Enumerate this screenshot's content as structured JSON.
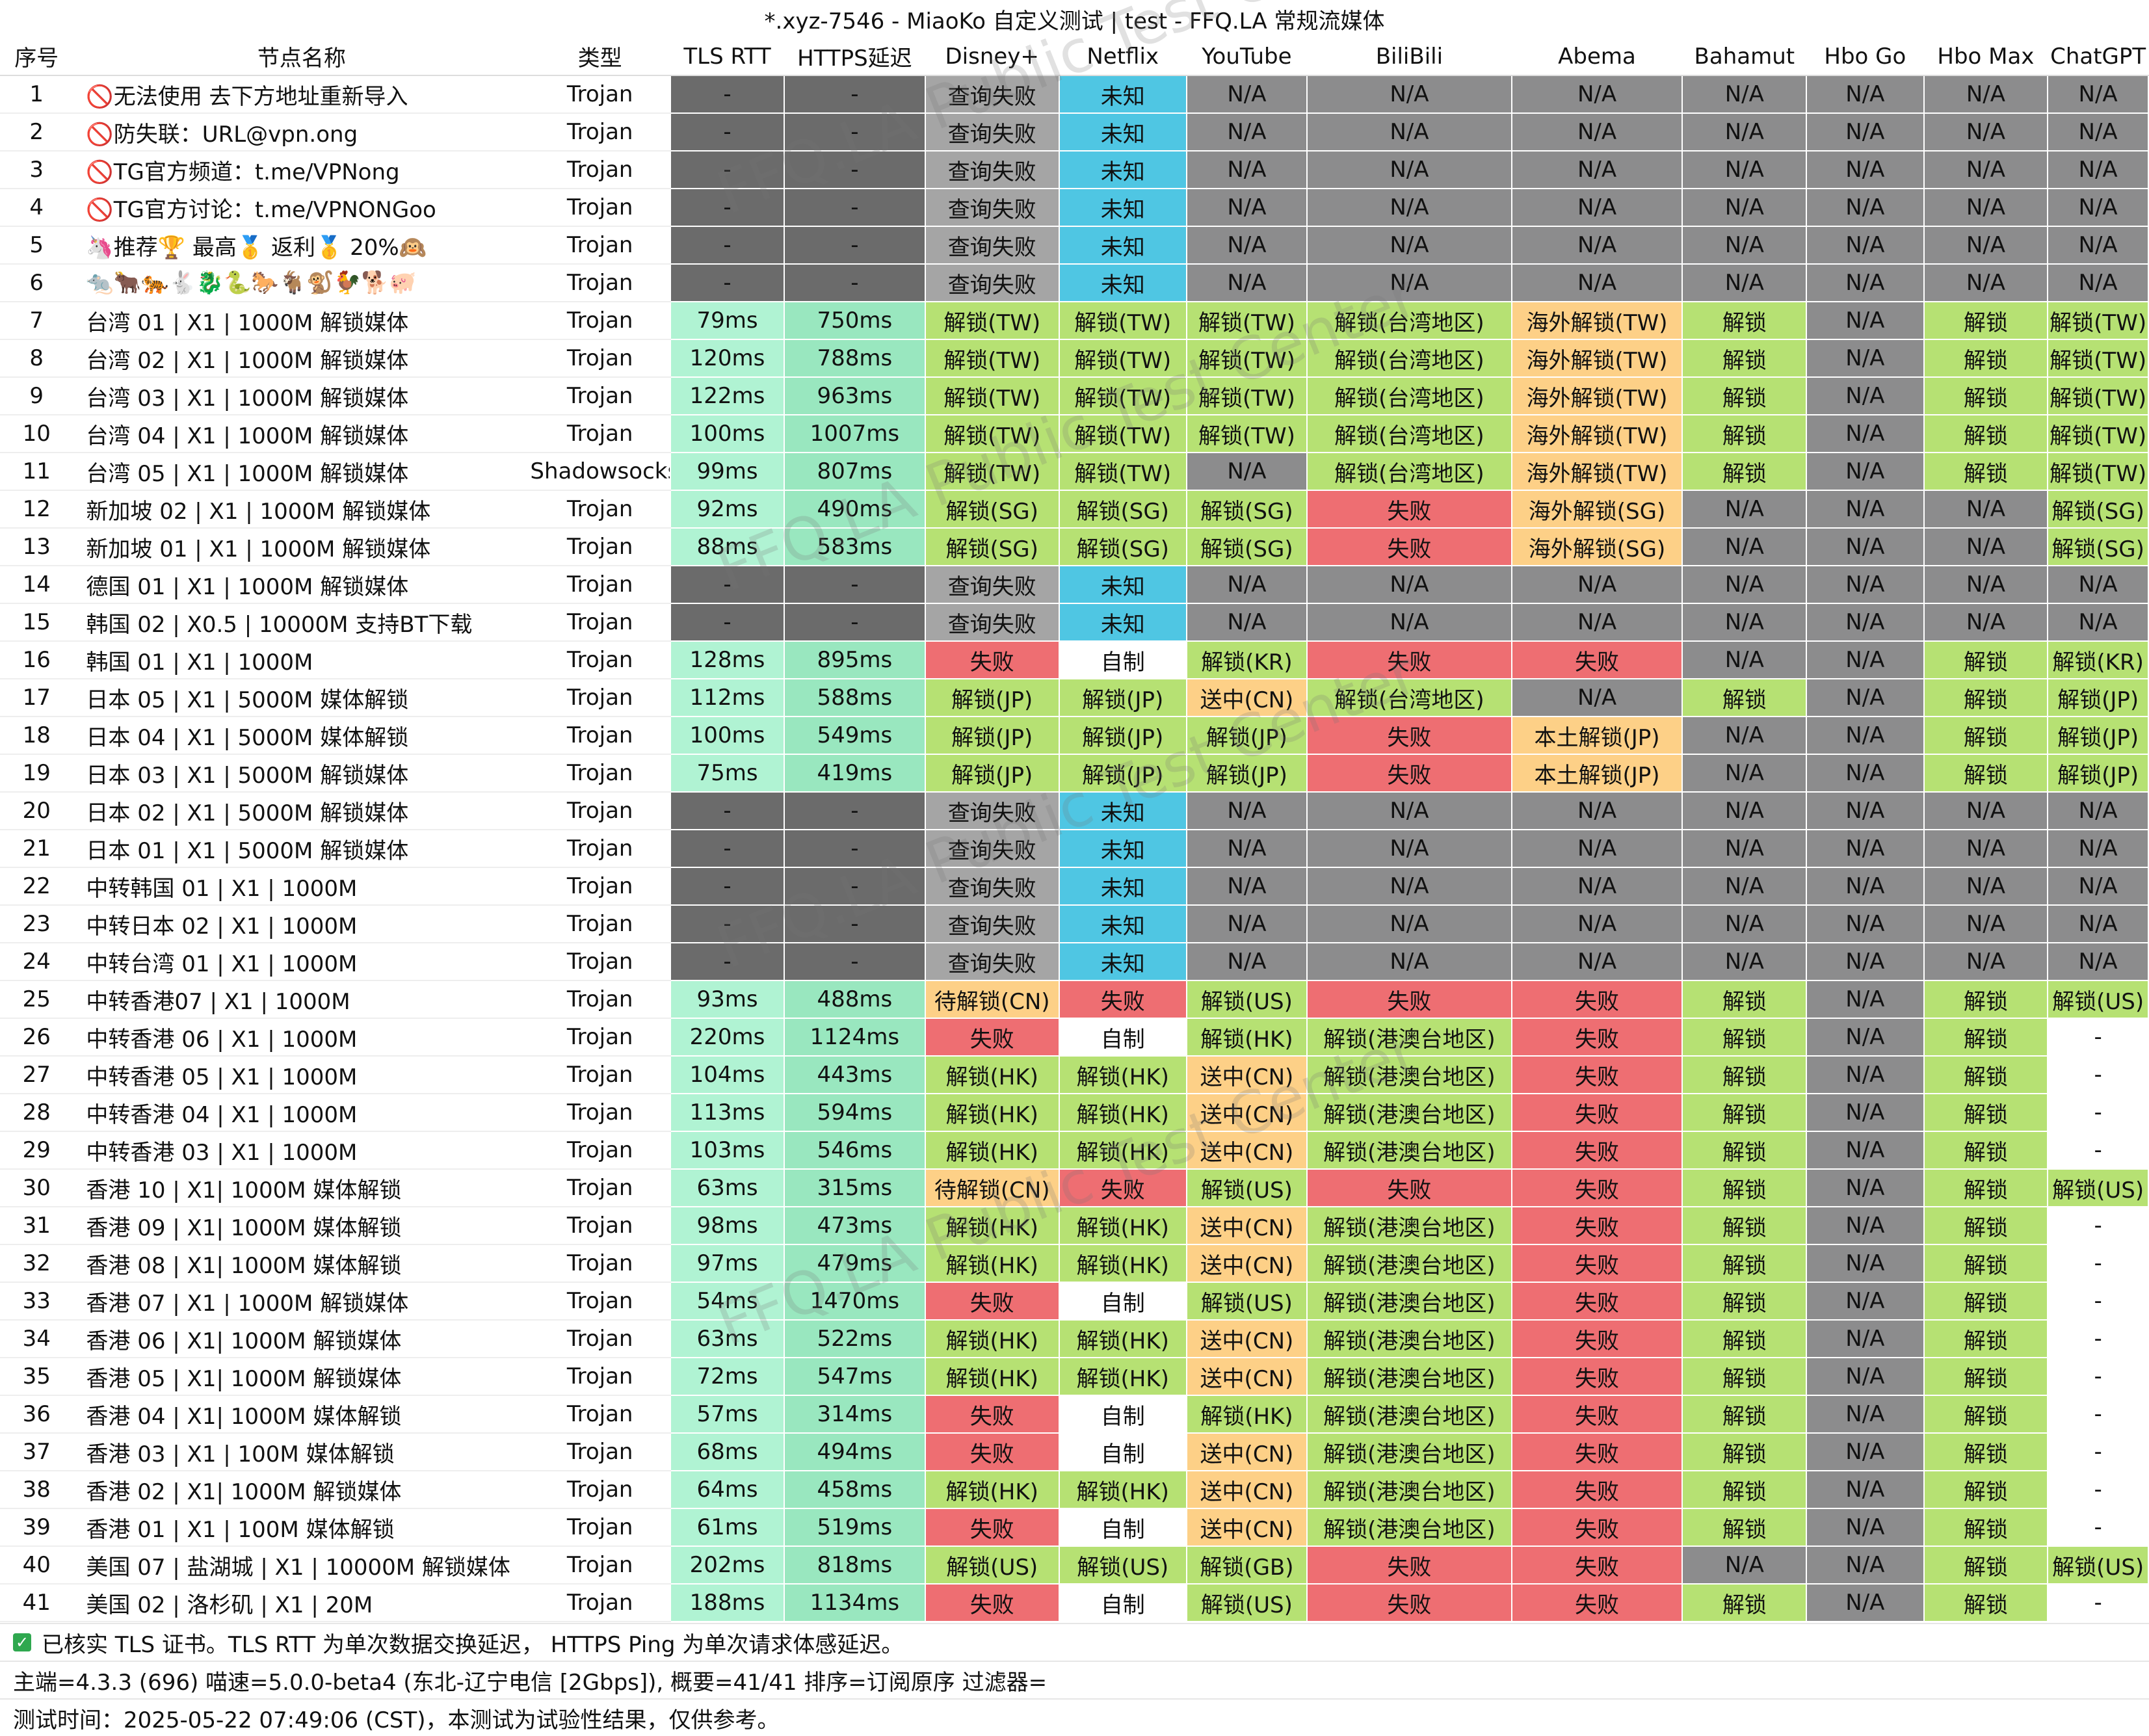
{
  "title": "*.xyz-7546 - MiaoKo 自定义测试 | test - FFQ.LA 常规流媒体",
  "columns": [
    "序号",
    "节点名称",
    "类型",
    "TLS RTT",
    "HTTPS延迟",
    "Disney+",
    "Netflix",
    "YouTube",
    "BiliBili",
    "Abema",
    "Bahamut",
    "Hbo Go",
    "Hbo Max",
    "ChatGPT"
  ],
  "colors": {
    "dark": "#6b6b6b",
    "gray": "#8c8c8d",
    "fail_query": "#a5a5a5",
    "unknown": "#4fc6e3",
    "unlock": "#b6e173",
    "fail": "#ee6e72",
    "oversea": "#fdd087",
    "pending": "#fdd087",
    "rtt": "#b0f3d3",
    "https": "#99e7bf",
    "self": "#ffffff"
  },
  "rows": [
    [
      "1",
      "🚫无法使用 去下方地址重新导入",
      "Trojan",
      "-",
      "-",
      "查询失败",
      "未知",
      "N/A",
      "N/A",
      "N/A",
      "N/A",
      "N/A",
      "N/A",
      "N/A"
    ],
    [
      "2",
      "🚫防失联：URL@vpn.ong",
      "Trojan",
      "-",
      "-",
      "查询失败",
      "未知",
      "N/A",
      "N/A",
      "N/A",
      "N/A",
      "N/A",
      "N/A",
      "N/A"
    ],
    [
      "3",
      "🚫TG官方频道：t.me/VPNong",
      "Trojan",
      "-",
      "-",
      "查询失败",
      "未知",
      "N/A",
      "N/A",
      "N/A",
      "N/A",
      "N/A",
      "N/A",
      "N/A"
    ],
    [
      "4",
      "🚫TG官方讨论：t.me/VPNONGoo",
      "Trojan",
      "-",
      "-",
      "查询失败",
      "未知",
      "N/A",
      "N/A",
      "N/A",
      "N/A",
      "N/A",
      "N/A",
      "N/A"
    ],
    [
      "5",
      "🦄推荐🏆 最高🥇 返利🥇 20%🙉",
      "Trojan",
      "-",
      "-",
      "查询失败",
      "未知",
      "N/A",
      "N/A",
      "N/A",
      "N/A",
      "N/A",
      "N/A",
      "N/A"
    ],
    [
      "6",
      "🐀🐂🐅🐇🐉🐍🐎🐐🐒🐓🐕🐖",
      "Trojan",
      "-",
      "-",
      "查询失败",
      "未知",
      "N/A",
      "N/A",
      "N/A",
      "N/A",
      "N/A",
      "N/A",
      "N/A"
    ],
    [
      "7",
      "台湾 01 | X1 | 1000M 解锁媒体",
      "Trojan",
      "79ms",
      "750ms",
      "解锁(TW)",
      "解锁(TW)",
      "解锁(TW)",
      "解锁(台湾地区)",
      "海外解锁(TW)",
      "解锁",
      "N/A",
      "解锁",
      "解锁(TW)"
    ],
    [
      "8",
      "台湾 02 | X1 | 1000M 解锁媒体",
      "Trojan",
      "120ms",
      "788ms",
      "解锁(TW)",
      "解锁(TW)",
      "解锁(TW)",
      "解锁(台湾地区)",
      "海外解锁(TW)",
      "解锁",
      "N/A",
      "解锁",
      "解锁(TW)"
    ],
    [
      "9",
      "台湾 03 | X1 | 1000M 解锁媒体",
      "Trojan",
      "122ms",
      "963ms",
      "解锁(TW)",
      "解锁(TW)",
      "解锁(TW)",
      "解锁(台湾地区)",
      "海外解锁(TW)",
      "解锁",
      "N/A",
      "解锁",
      "解锁(TW)"
    ],
    [
      "10",
      "台湾 04 | X1 | 1000M 解锁媒体",
      "Trojan",
      "100ms",
      "1007ms",
      "解锁(TW)",
      "解锁(TW)",
      "解锁(TW)",
      "解锁(台湾地区)",
      "海外解锁(TW)",
      "解锁",
      "N/A",
      "解锁",
      "解锁(TW)"
    ],
    [
      "11",
      "台湾 05 | X1 | 1000M 解锁媒体",
      "Shadowsocks",
      "99ms",
      "807ms",
      "解锁(TW)",
      "解锁(TW)",
      "N/A",
      "解锁(台湾地区)",
      "海外解锁(TW)",
      "解锁",
      "N/A",
      "解锁",
      "解锁(TW)"
    ],
    [
      "12",
      "新加坡 02 | X1 | 1000M 解锁媒体",
      "Trojan",
      "92ms",
      "490ms",
      "解锁(SG)",
      "解锁(SG)",
      "解锁(SG)",
      "失败",
      "海外解锁(SG)",
      "N/A",
      "N/A",
      "N/A",
      "解锁(SG)"
    ],
    [
      "13",
      "新加坡 01 | X1 | 1000M 解锁媒体",
      "Trojan",
      "88ms",
      "583ms",
      "解锁(SG)",
      "解锁(SG)",
      "解锁(SG)",
      "失败",
      "海外解锁(SG)",
      "N/A",
      "N/A",
      "N/A",
      "解锁(SG)"
    ],
    [
      "14",
      "德国 01 | X1 | 1000M 解锁媒体",
      "Trojan",
      "-",
      "-",
      "查询失败",
      "未知",
      "N/A",
      "N/A",
      "N/A",
      "N/A",
      "N/A",
      "N/A",
      "N/A"
    ],
    [
      "15",
      "韩国 02 | X0.5 | 10000M 支持BT下载",
      "Trojan",
      "-",
      "-",
      "查询失败",
      "未知",
      "N/A",
      "N/A",
      "N/A",
      "N/A",
      "N/A",
      "N/A",
      "N/A"
    ],
    [
      "16",
      "韩国 01 | X1 | 1000M",
      "Trojan",
      "128ms",
      "895ms",
      "失败",
      "自制",
      "解锁(KR)",
      "失败",
      "失败",
      "N/A",
      "N/A",
      "解锁",
      "解锁(KR)"
    ],
    [
      "17",
      "日本 05 | X1 | 5000M 媒体解锁",
      "Trojan",
      "112ms",
      "588ms",
      "解锁(JP)",
      "解锁(JP)",
      "送中(CN)",
      "解锁(台湾地区)",
      "N/A",
      "解锁",
      "N/A",
      "解锁",
      "解锁(JP)"
    ],
    [
      "18",
      "日本 04 | X1 | 5000M 媒体解锁",
      "Trojan",
      "100ms",
      "549ms",
      "解锁(JP)",
      "解锁(JP)",
      "解锁(JP)",
      "失败",
      "本土解锁(JP)",
      "N/A",
      "N/A",
      "解锁",
      "解锁(JP)"
    ],
    [
      "19",
      "日本 03 | X1 | 5000M 解锁媒体",
      "Trojan",
      "75ms",
      "419ms",
      "解锁(JP)",
      "解锁(JP)",
      "解锁(JP)",
      "失败",
      "本土解锁(JP)",
      "N/A",
      "N/A",
      "解锁",
      "解锁(JP)"
    ],
    [
      "20",
      "日本 02 | X1 | 5000M 解锁媒体",
      "Trojan",
      "-",
      "-",
      "查询失败",
      "未知",
      "N/A",
      "N/A",
      "N/A",
      "N/A",
      "N/A",
      "N/A",
      "N/A"
    ],
    [
      "21",
      "日本 01 | X1 | 5000M 解锁媒体",
      "Trojan",
      "-",
      "-",
      "查询失败",
      "未知",
      "N/A",
      "N/A",
      "N/A",
      "N/A",
      "N/A",
      "N/A",
      "N/A"
    ],
    [
      "22",
      "中转韩国 01 | X1 | 1000M",
      "Trojan",
      "-",
      "-",
      "查询失败",
      "未知",
      "N/A",
      "N/A",
      "N/A",
      "N/A",
      "N/A",
      "N/A",
      "N/A"
    ],
    [
      "23",
      "中转日本 02 | X1 | 1000M",
      "Trojan",
      "-",
      "-",
      "查询失败",
      "未知",
      "N/A",
      "N/A",
      "N/A",
      "N/A",
      "N/A",
      "N/A",
      "N/A"
    ],
    [
      "24",
      "中转台湾 01 | X1 | 1000M",
      "Trojan",
      "-",
      "-",
      "查询失败",
      "未知",
      "N/A",
      "N/A",
      "N/A",
      "N/A",
      "N/A",
      "N/A",
      "N/A"
    ],
    [
      "25",
      "中转香港07 | X1 | 1000M",
      "Trojan",
      "93ms",
      "488ms",
      "待解锁(CN)",
      "失败",
      "解锁(US)",
      "失败",
      "失败",
      "解锁",
      "N/A",
      "解锁",
      "解锁(US)"
    ],
    [
      "26",
      "中转香港 06 | X1 | 1000M",
      "Trojan",
      "220ms",
      "1124ms",
      "失败",
      "自制",
      "解锁(HK)",
      "解锁(港澳台地区)",
      "失败",
      "解锁",
      "N/A",
      "解锁",
      "-"
    ],
    [
      "27",
      "中转香港 05 | X1 | 1000M",
      "Trojan",
      "104ms",
      "443ms",
      "解锁(HK)",
      "解锁(HK)",
      "送中(CN)",
      "解锁(港澳台地区)",
      "失败",
      "解锁",
      "N/A",
      "解锁",
      "-"
    ],
    [
      "28",
      "中转香港 04 | X1 | 1000M",
      "Trojan",
      "113ms",
      "594ms",
      "解锁(HK)",
      "解锁(HK)",
      "送中(CN)",
      "解锁(港澳台地区)",
      "失败",
      "解锁",
      "N/A",
      "解锁",
      "-"
    ],
    [
      "29",
      "中转香港 03 | X1 | 1000M",
      "Trojan",
      "103ms",
      "546ms",
      "解锁(HK)",
      "解锁(HK)",
      "送中(CN)",
      "解锁(港澳台地区)",
      "失败",
      "解锁",
      "N/A",
      "解锁",
      "-"
    ],
    [
      "30",
      "香港 10 | X1| 1000M 媒体解锁",
      "Trojan",
      "63ms",
      "315ms",
      "待解锁(CN)",
      "失败",
      "解锁(US)",
      "失败",
      "失败",
      "解锁",
      "N/A",
      "解锁",
      "解锁(US)"
    ],
    [
      "31",
      "香港 09 | X1| 1000M 媒体解锁",
      "Trojan",
      "98ms",
      "473ms",
      "解锁(HK)",
      "解锁(HK)",
      "送中(CN)",
      "解锁(港澳台地区)",
      "失败",
      "解锁",
      "N/A",
      "解锁",
      "-"
    ],
    [
      "32",
      "香港 08 | X1| 1000M 媒体解锁",
      "Trojan",
      "97ms",
      "479ms",
      "解锁(HK)",
      "解锁(HK)",
      "送中(CN)",
      "解锁(港澳台地区)",
      "失败",
      "解锁",
      "N/A",
      "解锁",
      "-"
    ],
    [
      "33",
      "香港 07 | X1 | 1000M 解锁媒体",
      "Trojan",
      "54ms",
      "1470ms",
      "失败",
      "自制",
      "解锁(US)",
      "解锁(港澳台地区)",
      "失败",
      "解锁",
      "N/A",
      "解锁",
      "-"
    ],
    [
      "34",
      "香港 06 | X1| 1000M 解锁媒体",
      "Trojan",
      "63ms",
      "522ms",
      "解锁(HK)",
      "解锁(HK)",
      "送中(CN)",
      "解锁(港澳台地区)",
      "失败",
      "解锁",
      "N/A",
      "解锁",
      "-"
    ],
    [
      "35",
      "香港 05 | X1| 1000M 解锁媒体",
      "Trojan",
      "72ms",
      "547ms",
      "解锁(HK)",
      "解锁(HK)",
      "送中(CN)",
      "解锁(港澳台地区)",
      "失败",
      "解锁",
      "N/A",
      "解锁",
      "-"
    ],
    [
      "36",
      "香港 04 | X1| 1000M 媒体解锁",
      "Trojan",
      "57ms",
      "314ms",
      "失败",
      "自制",
      "解锁(HK)",
      "解锁(港澳台地区)",
      "失败",
      "解锁",
      "N/A",
      "解锁",
      "-"
    ],
    [
      "37",
      "香港 03 | X1 | 100M 媒体解锁",
      "Trojan",
      "68ms",
      "494ms",
      "失败",
      "自制",
      "送中(CN)",
      "解锁(港澳台地区)",
      "失败",
      "解锁",
      "N/A",
      "解锁",
      "-"
    ],
    [
      "38",
      "香港 02 | X1| 1000M 解锁媒体",
      "Trojan",
      "64ms",
      "458ms",
      "解锁(HK)",
      "解锁(HK)",
      "送中(CN)",
      "解锁(港澳台地区)",
      "失败",
      "解锁",
      "N/A",
      "解锁",
      "-"
    ],
    [
      "39",
      "香港 01 | X1 | 100M 媒体解锁",
      "Trojan",
      "61ms",
      "519ms",
      "失败",
      "自制",
      "送中(CN)",
      "解锁(港澳台地区)",
      "失败",
      "解锁",
      "N/A",
      "解锁",
      "-"
    ],
    [
      "40",
      "美国 07 | 盐湖城 | X1 | 10000M 解锁媒体",
      "Trojan",
      "202ms",
      "818ms",
      "解锁(US)",
      "解锁(US)",
      "解锁(GB)",
      "失败",
      "失败",
      "N/A",
      "N/A",
      "解锁",
      "解锁(US)"
    ],
    [
      "41",
      "美国 02 | 洛杉矶 | X1 | 20M",
      "Trojan",
      "188ms",
      "1134ms",
      "失败",
      "自制",
      "解锁(US)",
      "失败",
      "失败",
      "解锁",
      "N/A",
      "解锁",
      "-"
    ]
  ],
  "footer": {
    "line1": "已核实 TLS 证书。TLS RTT 为单次数据交换延迟， HTTPS Ping 为单次请求体感延迟。",
    "line2": "主端=4.3.3 (696) 喵速=5.0.0-beta4 (东北-辽宁电信 [2Gbps]), 概要=41/41 排序=订阅原序 过滤器=",
    "line3": "测试时间：2025-05-22 07:49:06 (CST)，本测试为试验性结果，仅供参考。"
  },
  "watermark": "FFQ.LA Public Test Center"
}
